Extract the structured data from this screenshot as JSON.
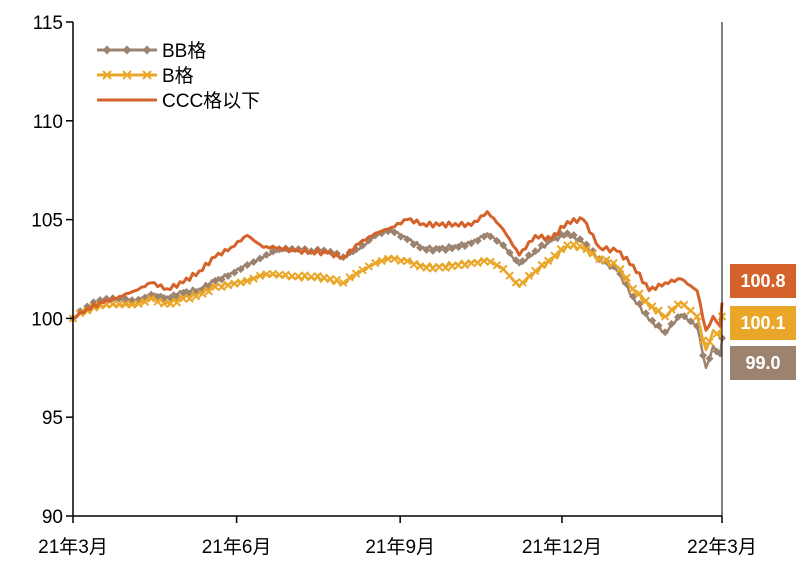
{
  "chart_data": {
    "type": "line",
    "title": "",
    "xlabel": "",
    "ylabel": "",
    "ylim": [
      90,
      115
    ],
    "yticks": [
      "90",
      "95",
      "100",
      "105",
      "110",
      "115"
    ],
    "xlim": [
      "2021-03-01",
      "2022-03-01"
    ],
    "xticks": [
      {
        "date": "2021-03-01",
        "label": "21年3月"
      },
      {
        "date": "2021-06-01",
        "label": "21年6月"
      },
      {
        "date": "2021-09-01",
        "label": "21年9月"
      },
      {
        "date": "2021-12-01",
        "label": "21年12月"
      },
      {
        "date": "2022-03-01",
        "label": "22年3月"
      }
    ],
    "grid": false,
    "legend_position": "top-left",
    "series": [
      {
        "name": "BB格",
        "color": "#9b8370",
        "marker": "diamond",
        "end_label": "99.0",
        "points": [
          [
            "2021-03-01",
            100.0
          ],
          [
            "2021-03-09",
            100.6
          ],
          [
            "2021-03-18",
            100.9
          ],
          [
            "2021-03-27",
            101.0
          ],
          [
            "2021-04-05",
            100.9
          ],
          [
            "2021-04-14",
            101.2
          ],
          [
            "2021-04-23",
            101.1
          ],
          [
            "2021-05-02",
            101.3
          ],
          [
            "2021-05-11",
            101.5
          ],
          [
            "2021-05-20",
            101.9
          ],
          [
            "2021-05-29",
            102.3
          ],
          [
            "2021-06-07",
            102.7
          ],
          [
            "2021-06-16",
            103.1
          ],
          [
            "2021-06-25",
            103.5
          ],
          [
            "2021-07-04",
            103.4
          ],
          [
            "2021-07-13",
            103.4
          ],
          [
            "2021-07-22",
            103.3
          ],
          [
            "2021-07-31",
            103.1
          ],
          [
            "2021-08-09",
            103.5
          ],
          [
            "2021-08-18",
            104.2
          ],
          [
            "2021-08-27",
            104.5
          ],
          [
            "2021-09-05",
            104.0
          ],
          [
            "2021-09-14",
            103.6
          ],
          [
            "2021-09-23",
            103.5
          ],
          [
            "2021-10-02",
            103.7
          ],
          [
            "2021-10-11",
            103.8
          ],
          [
            "2021-10-20",
            104.3
          ],
          [
            "2021-10-29",
            103.7
          ],
          [
            "2021-11-07",
            102.7
          ],
          [
            "2021-11-16",
            103.4
          ],
          [
            "2021-11-25",
            103.9
          ],
          [
            "2021-12-04",
            104.3
          ],
          [
            "2021-12-13",
            103.8
          ],
          [
            "2021-12-22",
            103.0
          ],
          [
            "2022-01-01",
            102.4
          ],
          [
            "2022-01-10",
            101.1
          ],
          [
            "2022-01-19",
            99.9
          ],
          [
            "2022-01-28",
            99.3
          ],
          [
            "2022-02-06",
            100.2
          ],
          [
            "2022-02-15",
            99.6
          ],
          [
            "2022-02-20",
            97.5
          ],
          [
            "2022-02-24",
            98.6
          ],
          [
            "2022-02-28",
            98.1
          ],
          [
            "2022-03-01",
            99.0
          ]
        ]
      },
      {
        "name": "B格",
        "color": "#e9a628",
        "marker": "x",
        "end_label": "100.1",
        "points": [
          [
            "2021-03-01",
            100.0
          ],
          [
            "2021-03-09",
            100.4
          ],
          [
            "2021-03-18",
            100.6
          ],
          [
            "2021-03-27",
            100.7
          ],
          [
            "2021-04-05",
            100.7
          ],
          [
            "2021-04-14",
            101.0
          ],
          [
            "2021-04-23",
            100.8
          ],
          [
            "2021-05-02",
            101.0
          ],
          [
            "2021-05-11",
            101.3
          ],
          [
            "2021-05-20",
            101.6
          ],
          [
            "2021-05-29",
            101.8
          ],
          [
            "2021-06-07",
            101.9
          ],
          [
            "2021-06-16",
            102.2
          ],
          [
            "2021-06-25",
            102.2
          ],
          [
            "2021-07-04",
            102.0
          ],
          [
            "2021-07-13",
            102.1
          ],
          [
            "2021-07-22",
            101.9
          ],
          [
            "2021-07-31",
            101.8
          ],
          [
            "2021-08-09",
            102.3
          ],
          [
            "2021-08-18",
            102.8
          ],
          [
            "2021-08-27",
            103.1
          ],
          [
            "2021-09-05",
            102.9
          ],
          [
            "2021-09-14",
            102.7
          ],
          [
            "2021-09-23",
            102.6
          ],
          [
            "2021-10-02",
            102.8
          ],
          [
            "2021-10-11",
            102.8
          ],
          [
            "2021-10-20",
            103.0
          ],
          [
            "2021-10-29",
            102.5
          ],
          [
            "2021-11-07",
            101.6
          ],
          [
            "2021-11-16",
            102.4
          ],
          [
            "2021-11-25",
            102.9
          ],
          [
            "2021-12-04",
            103.7
          ],
          [
            "2021-12-13",
            103.5
          ],
          [
            "2021-12-22",
            103.0
          ],
          [
            "2022-01-01",
            102.6
          ],
          [
            "2022-01-10",
            101.5
          ],
          [
            "2022-01-19",
            100.6
          ],
          [
            "2022-01-28",
            100.1
          ],
          [
            "2022-02-06",
            100.8
          ],
          [
            "2022-02-15",
            100.1
          ],
          [
            "2022-02-20",
            98.4
          ],
          [
            "2022-02-24",
            99.4
          ],
          [
            "2022-02-28",
            99.1
          ],
          [
            "2022-03-01",
            100.1
          ]
        ]
      },
      {
        "name": "CCC格以下",
        "color": "#d4622a",
        "marker": "none",
        "end_label": "100.8",
        "points": [
          [
            "2021-03-01",
            100.0
          ],
          [
            "2021-03-09",
            100.5
          ],
          [
            "2021-03-18",
            100.8
          ],
          [
            "2021-03-27",
            101.1
          ],
          [
            "2021-04-05",
            101.4
          ],
          [
            "2021-04-14",
            101.8
          ],
          [
            "2021-04-23",
            101.5
          ],
          [
            "2021-05-02",
            101.8
          ],
          [
            "2021-05-11",
            102.4
          ],
          [
            "2021-05-20",
            103.1
          ],
          [
            "2021-05-29",
            103.6
          ],
          [
            "2021-06-07",
            104.2
          ],
          [
            "2021-06-16",
            103.6
          ],
          [
            "2021-06-25",
            103.6
          ],
          [
            "2021-07-04",
            103.4
          ],
          [
            "2021-07-13",
            103.4
          ],
          [
            "2021-07-22",
            103.3
          ],
          [
            "2021-07-31",
            103.1
          ],
          [
            "2021-08-09",
            103.8
          ],
          [
            "2021-08-18",
            104.3
          ],
          [
            "2021-08-27",
            104.6
          ],
          [
            "2021-09-05",
            105.0
          ],
          [
            "2021-09-14",
            104.8
          ],
          [
            "2021-09-23",
            104.7
          ],
          [
            "2021-10-02",
            104.8
          ],
          [
            "2021-10-11",
            104.7
          ],
          [
            "2021-10-20",
            105.4
          ],
          [
            "2021-10-29",
            104.5
          ],
          [
            "2021-11-07",
            103.2
          ],
          [
            "2021-11-16",
            104.2
          ],
          [
            "2021-11-25",
            104.0
          ],
          [
            "2021-12-04",
            104.9
          ],
          [
            "2021-12-13",
            105.0
          ],
          [
            "2021-12-22",
            103.6
          ],
          [
            "2022-01-01",
            103.4
          ],
          [
            "2022-01-10",
            102.7
          ],
          [
            "2022-01-19",
            101.4
          ],
          [
            "2022-01-28",
            101.8
          ],
          [
            "2022-02-06",
            102.0
          ],
          [
            "2022-02-15",
            101.4
          ],
          [
            "2022-02-20",
            99.4
          ],
          [
            "2022-02-24",
            100.1
          ],
          [
            "2022-02-28",
            99.6
          ],
          [
            "2022-03-01",
            100.8
          ]
        ]
      }
    ]
  }
}
